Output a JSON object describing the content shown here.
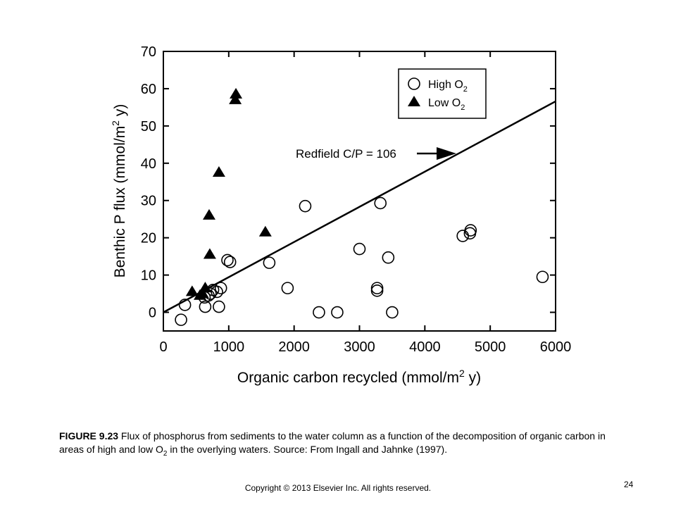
{
  "chart_data": {
    "type": "scatter",
    "xlabel": "Organic carbon recycled (mmol/m",
    "xlabel_sup": "2",
    "xlabel_tail": " y)",
    "ylabel": "Benthic P flux (mmol/m",
    "ylabel_sup": "2",
    "ylabel_tail": " y)",
    "xlim": [
      0,
      6000
    ],
    "ylim": [
      -5,
      70
    ],
    "xticks": [
      "0",
      "1000",
      "2000",
      "3000",
      "4000",
      "5000",
      "6000"
    ],
    "yticks": [
      "0",
      "10",
      "20",
      "30",
      "40",
      "50",
      "60",
      "70"
    ],
    "grid": false,
    "legend_position": "top-right",
    "series": [
      {
        "name": "High O",
        "name_sub": "2",
        "marker": "open-circle",
        "points": [
          [
            270,
            -2
          ],
          [
            330,
            2
          ],
          [
            640,
            1.5
          ],
          [
            630,
            4
          ],
          [
            690,
            4.5
          ],
          [
            720,
            5
          ],
          [
            760,
            6
          ],
          [
            820,
            5.5
          ],
          [
            850,
            1.5
          ],
          [
            880,
            6.5
          ],
          [
            980,
            14
          ],
          [
            1020,
            13.5
          ],
          [
            1620,
            13.3
          ],
          [
            1900,
            6.5
          ],
          [
            2170,
            28.5
          ],
          [
            2380,
            0
          ],
          [
            2660,
            0
          ],
          [
            3000,
            17
          ],
          [
            3270,
            6.5
          ],
          [
            3270,
            5.8
          ],
          [
            3320,
            29.3
          ],
          [
            3440,
            14.7
          ],
          [
            3500,
            0
          ],
          [
            4580,
            20.5
          ],
          [
            4690,
            21.2
          ],
          [
            4700,
            22
          ],
          [
            5800,
            9.5
          ]
        ]
      },
      {
        "name": "Low O",
        "name_sub": "2",
        "marker": "filled-triangle",
        "points": [
          [
            440,
            5.5
          ],
          [
            560,
            4.5
          ],
          [
            600,
            5
          ],
          [
            640,
            6.5
          ],
          [
            700,
            26
          ],
          [
            710,
            15.5
          ],
          [
            850,
            37.5
          ],
          [
            1100,
            57
          ],
          [
            1110,
            58.5
          ],
          [
            1560,
            21.5
          ]
        ]
      }
    ],
    "redfield_line": {
      "label": "Redfield C/P = 106",
      "x": [
        0,
        6000
      ],
      "y": [
        0,
        56.6
      ]
    }
  },
  "caption": {
    "figure_label": "FIGURE 9.23",
    "text_part1": " Flux of phosphorus from sediments to the water column as a function of the decomposition of organic carbon in areas of high and low O",
    "text_sub": "2",
    "text_part2": " in the overlying waters. Source: From Ingall and Jahnke (1997)."
  },
  "page_number": "24",
  "copyright": "Copyright © 2013 Elsevier Inc. All rights reserved."
}
